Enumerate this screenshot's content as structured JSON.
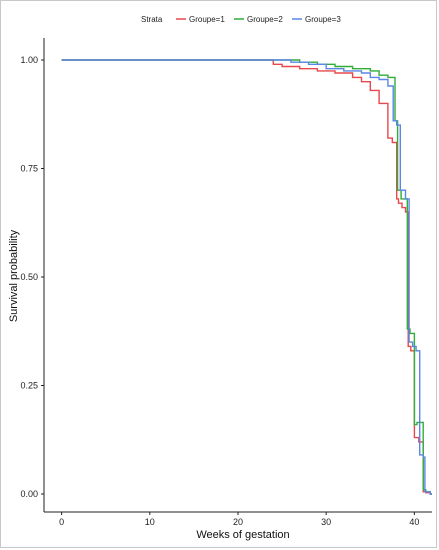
{
  "chart_data": {
    "type": "line",
    "step": true,
    "xlabel": "Weeks of gestation",
    "ylabel": "Survival probability",
    "xlim": [
      -2,
      42
    ],
    "ylim": [
      0,
      1
    ],
    "xticks": [
      0,
      10,
      20,
      30,
      40
    ],
    "yticks": [
      0.0,
      0.25,
      0.5,
      0.75,
      1.0
    ],
    "ytick_labels": [
      "0.00",
      "0.25",
      "0.50",
      "0.75",
      "1.00"
    ],
    "grid": false,
    "legend": {
      "title": "Strata",
      "position": "top",
      "entries": [
        "Groupe=1",
        "Groupe=2",
        "Groupe=3"
      ]
    },
    "series": [
      {
        "name": "Groupe=1",
        "color": "#e8484b",
        "x": [
          0,
          24,
          25,
          27,
          29,
          31,
          33,
          34,
          35,
          36,
          37,
          37.5,
          38,
          38.2,
          38.6,
          39,
          39.3,
          39.6,
          40,
          40.5,
          41,
          41.3,
          41.8
        ],
        "y": [
          1.0,
          0.99,
          0.985,
          0.98,
          0.975,
          0.97,
          0.96,
          0.95,
          0.93,
          0.9,
          0.82,
          0.81,
          0.68,
          0.67,
          0.66,
          0.65,
          0.34,
          0.33,
          0.13,
          0.12,
          0.005,
          0.003,
          0.0
        ]
      },
      {
        "name": "Groupe=2",
        "color": "#2fae3a",
        "x": [
          0,
          27,
          29,
          31,
          33,
          35,
          36,
          37,
          37.8,
          38.1,
          38.5,
          39.2,
          39.5,
          40,
          40.3,
          41,
          41.3,
          41.8
        ],
        "y": [
          1.0,
          0.995,
          0.99,
          0.985,
          0.98,
          0.975,
          0.965,
          0.96,
          0.86,
          0.7,
          0.68,
          0.38,
          0.37,
          0.16,
          0.165,
          0.01,
          0.005,
          0.0
        ]
      },
      {
        "name": "Groupe=3",
        "color": "#5b86e5",
        "x": [
          0,
          26,
          28,
          30,
          32,
          34,
          35,
          36,
          37,
          37.6,
          38,
          38.4,
          39,
          39.4,
          39.8,
          40.2,
          40.6,
          41,
          41.2,
          41.8
        ],
        "y": [
          1.0,
          0.995,
          0.99,
          0.98,
          0.975,
          0.97,
          0.96,
          0.955,
          0.94,
          0.86,
          0.85,
          0.7,
          0.68,
          0.35,
          0.34,
          0.33,
          0.09,
          0.085,
          0.005,
          0.0
        ]
      }
    ]
  }
}
